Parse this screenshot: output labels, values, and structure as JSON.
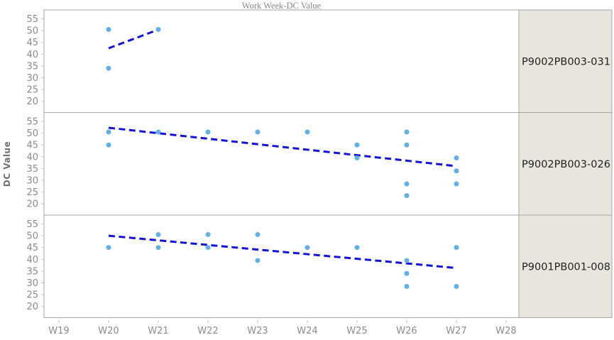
{
  "title": "Work Week-DC Value",
  "y_axis_label": "DC Value",
  "colors": {
    "point": "#62b0e8",
    "trend": "#1113d8",
    "border": "#a6a6a6",
    "panel_bg": "#ffffff",
    "strip_bg": "#e6e6df",
    "strip_text": "#1f1f1f",
    "tick_text": "#8b8b8b",
    "axis_tick_mark": "#c4c4c4",
    "title_text": "#8a8a8a",
    "axis_label_text": "#717171"
  },
  "chart_data": {
    "type": "scatter",
    "subtype": "trellis-3-row-panels-with-dashed-linear-fit",
    "title": "Work Week-DC Value",
    "xlabel": "",
    "ylabel": "DC Value",
    "x_categories": [
      "W19",
      "W20",
      "W21",
      "W22",
      "W23",
      "W24",
      "W25",
      "W26",
      "W27",
      "W28"
    ],
    "y_ticks": [
      55,
      50,
      45,
      40,
      35,
      30,
      25,
      20
    ],
    "ylim": [
      16,
      58.5
    ],
    "grid": false,
    "legend": false,
    "panels": [
      {
        "label": "P9002PB003-031",
        "points": [
          {
            "w": "W20",
            "v": 50.5
          },
          {
            "w": "W20",
            "v": 34
          },
          {
            "w": "W21",
            "v": 50.5
          }
        ],
        "trend": {
          "week_start": "W20",
          "value_start": 42.5,
          "week_end": "W21",
          "value_end": 50.4
        }
      },
      {
        "label": "P9002PB003-026",
        "points": [
          {
            "w": "W20",
            "v": 50.5
          },
          {
            "w": "W20",
            "v": 45
          },
          {
            "w": "W21",
            "v": 50.5
          },
          {
            "w": "W22",
            "v": 50.5
          },
          {
            "w": "W23",
            "v": 50.5
          },
          {
            "w": "W24",
            "v": 50.5
          },
          {
            "w": "W25",
            "v": 45
          },
          {
            "w": "W25",
            "v": 39.5
          },
          {
            "w": "W26",
            "v": 50.5
          },
          {
            "w": "W26",
            "v": 45
          },
          {
            "w": "W26",
            "v": 28.5
          },
          {
            "w": "W26",
            "v": 23.5
          },
          {
            "w": "W27",
            "v": 39.5
          },
          {
            "w": "W27",
            "v": 34
          },
          {
            "w": "W27",
            "v": 28.5
          }
        ],
        "trend": {
          "week_start": "W20",
          "value_start": 52.3,
          "week_end": "W27",
          "value_end": 36
        }
      },
      {
        "label": "P9001PB001-008",
        "points": [
          {
            "w": "W20",
            "v": 45
          },
          {
            "w": "W21",
            "v": 50.5
          },
          {
            "w": "W21",
            "v": 45
          },
          {
            "w": "W22",
            "v": 50.5
          },
          {
            "w": "W22",
            "v": 45
          },
          {
            "w": "W23",
            "v": 50.5
          },
          {
            "w": "W23",
            "v": 39.5
          },
          {
            "w": "W24",
            "v": 45
          },
          {
            "w": "W25",
            "v": 45
          },
          {
            "w": "W26",
            "v": 39.5
          },
          {
            "w": "W26",
            "v": 34
          },
          {
            "w": "W26",
            "v": 28.5
          },
          {
            "w": "W27",
            "v": 45
          },
          {
            "w": "W27",
            "v": 28.5
          }
        ],
        "trend": {
          "week_start": "W20",
          "value_start": 50,
          "week_end": "W27",
          "value_end": 36.3
        }
      }
    ]
  }
}
